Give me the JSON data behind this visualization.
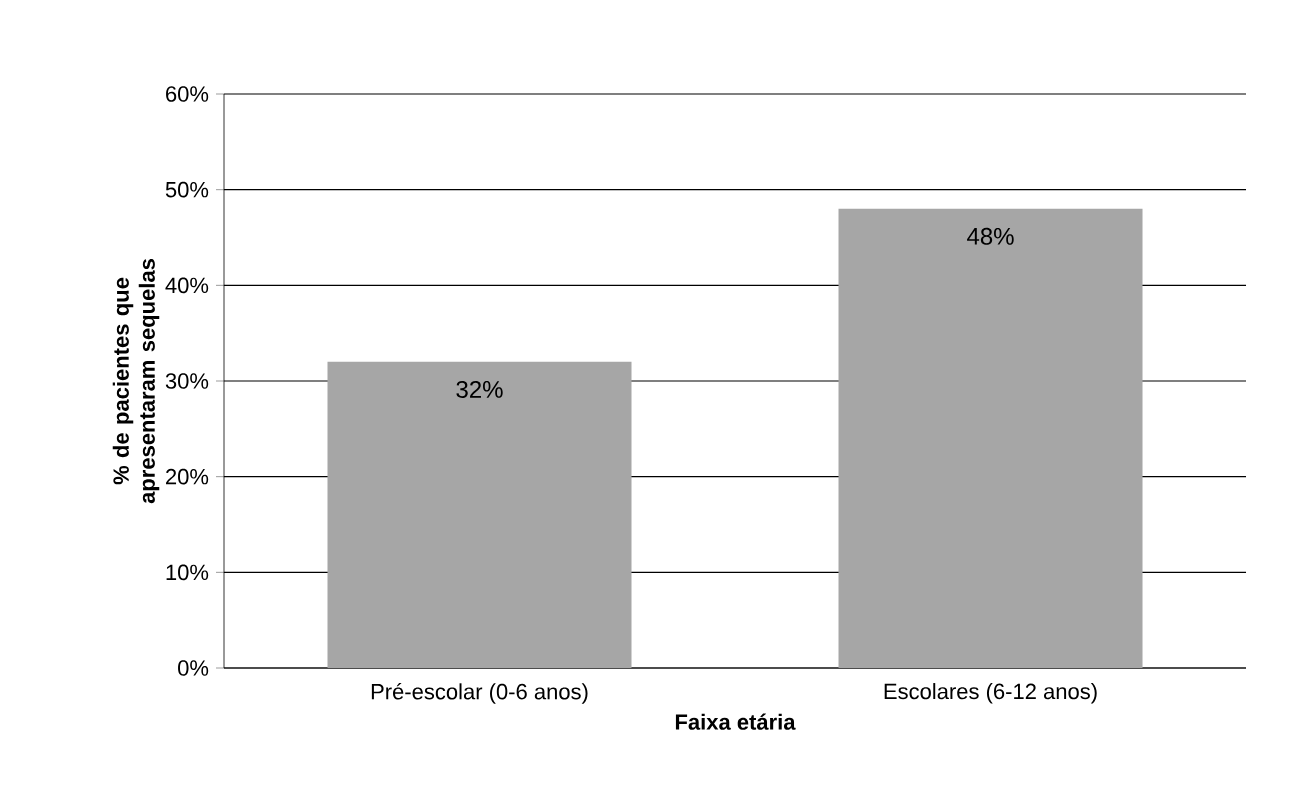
{
  "chart_data": {
    "type": "bar",
    "xlabel": "Faixa etária",
    "ylabel": "% de pacientes que apresentaram sequelas",
    "categories": [
      "Pré-escolar (0-6 anos)",
      "Escolares (6-12 anos)"
    ],
    "values": [
      32,
      48
    ],
    "value_labels": [
      "32%",
      "48%"
    ],
    "color": "#a6a6a6",
    "ylim": [
      0,
      60
    ],
    "yticks": [
      {
        "value": 0,
        "label": "0%"
      },
      {
        "value": 10,
        "label": "10%"
      },
      {
        "value": 20,
        "label": "20%"
      },
      {
        "value": 30,
        "label": "30%"
      },
      {
        "value": 40,
        "label": "40%"
      },
      {
        "value": 50,
        "label": "50%"
      },
      {
        "value": 60,
        "label": "60%"
      }
    ],
    "grid": "y"
  }
}
